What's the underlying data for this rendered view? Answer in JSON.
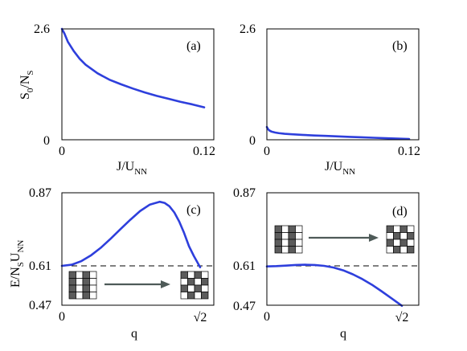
{
  "chart_data": [
    {
      "panel": "(a)",
      "type": "line",
      "ylabel": {
        "main": "S",
        "sub": "0",
        "rest": "/N",
        "sub2": "S"
      },
      "xlabel": {
        "main": "J/U",
        "sub": "NN"
      },
      "xlim": [
        0,
        0.12
      ],
      "ylim": [
        0,
        2.6
      ],
      "xticks": [
        "0",
        "0.12"
      ],
      "yticks": [
        "0",
        "2.6"
      ],
      "series": [
        {
          "x": [
            0.0,
            0.002,
            0.005,
            0.01,
            0.015,
            0.02,
            0.03,
            0.04,
            0.05,
            0.06,
            0.07,
            0.08,
            0.09,
            0.1,
            0.11,
            0.12
          ],
          "y": [
            2.6,
            2.5,
            2.3,
            2.08,
            1.9,
            1.76,
            1.56,
            1.41,
            1.3,
            1.2,
            1.11,
            1.03,
            0.96,
            0.89,
            0.83,
            0.76
          ]
        }
      ]
    },
    {
      "panel": "(b)",
      "type": "line",
      "xlabel": {
        "main": "J/U",
        "sub": "NN"
      },
      "xlim": [
        0,
        0.12
      ],
      "ylim": [
        0,
        2.6
      ],
      "xticks": [
        "0",
        "0.12"
      ],
      "yticks": [
        "0",
        "2.6"
      ],
      "series": [
        {
          "x": [
            0.0,
            0.001,
            0.002,
            0.004,
            0.007,
            0.01,
            0.015,
            0.02,
            0.03,
            0.04,
            0.05,
            0.06,
            0.07,
            0.08,
            0.09,
            0.1,
            0.11,
            0.12
          ],
          "y": [
            0.3,
            0.25,
            0.22,
            0.19,
            0.17,
            0.155,
            0.14,
            0.13,
            0.115,
            0.1,
            0.09,
            0.078,
            0.067,
            0.057,
            0.047,
            0.037,
            0.027,
            0.018
          ]
        }
      ]
    },
    {
      "panel": "(c)",
      "type": "line",
      "ylabel": {
        "main": "E/N",
        "sub": "S",
        "rest": "U",
        "sub2": "NN"
      },
      "xlabel": {
        "main": "q"
      },
      "xlim": [
        0,
        1.4142
      ],
      "ylim": [
        0.47,
        0.87
      ],
      "xticks": [
        "0",
        "√2"
      ],
      "yticks": [
        "0.47",
        "0.61",
        "0.87"
      ],
      "reference_y": 0.61,
      "series": [
        {
          "x": [
            0.0,
            0.1,
            0.2,
            0.3,
            0.4,
            0.5,
            0.6,
            0.7,
            0.8,
            0.9,
            1.0,
            1.05,
            1.1,
            1.15,
            1.2,
            1.25,
            1.3,
            1.35,
            1.4142
          ],
          "y": [
            0.61,
            0.614,
            0.627,
            0.648,
            0.675,
            0.707,
            0.741,
            0.774,
            0.805,
            0.828,
            0.838,
            0.834,
            0.822,
            0.8,
            0.768,
            0.727,
            0.68,
            0.645,
            0.605
          ]
        }
      ]
    },
    {
      "panel": "(d)",
      "type": "line",
      "xlabel": {
        "main": "q"
      },
      "xlim": [
        0,
        1.4142
      ],
      "ylim": [
        0.47,
        0.87
      ],
      "xticks": [
        "0",
        "√2"
      ],
      "yticks": [
        "0.47",
        "0.61",
        "0.87"
      ],
      "reference_y": 0.61,
      "series": [
        {
          "x": [
            0.0,
            0.1,
            0.2,
            0.3,
            0.4,
            0.5,
            0.6,
            0.7,
            0.8,
            0.9,
            1.0,
            1.1,
            1.2,
            1.3,
            1.4142
          ],
          "y": [
            0.608,
            0.609,
            0.611,
            0.613,
            0.614,
            0.613,
            0.61,
            0.604,
            0.594,
            0.58,
            0.563,
            0.543,
            0.52,
            0.496,
            0.468
          ]
        }
      ]
    }
  ],
  "insets": {
    "c": {
      "from_pattern": "striped",
      "to_pattern": "checkerboard"
    },
    "d": {
      "from_pattern": "striped",
      "to_pattern": "checkerboard"
    }
  },
  "colors": {
    "curve": "#2e3fdc",
    "arrow": "#4e5a58",
    "dark_cell": "#5c5c5c"
  }
}
